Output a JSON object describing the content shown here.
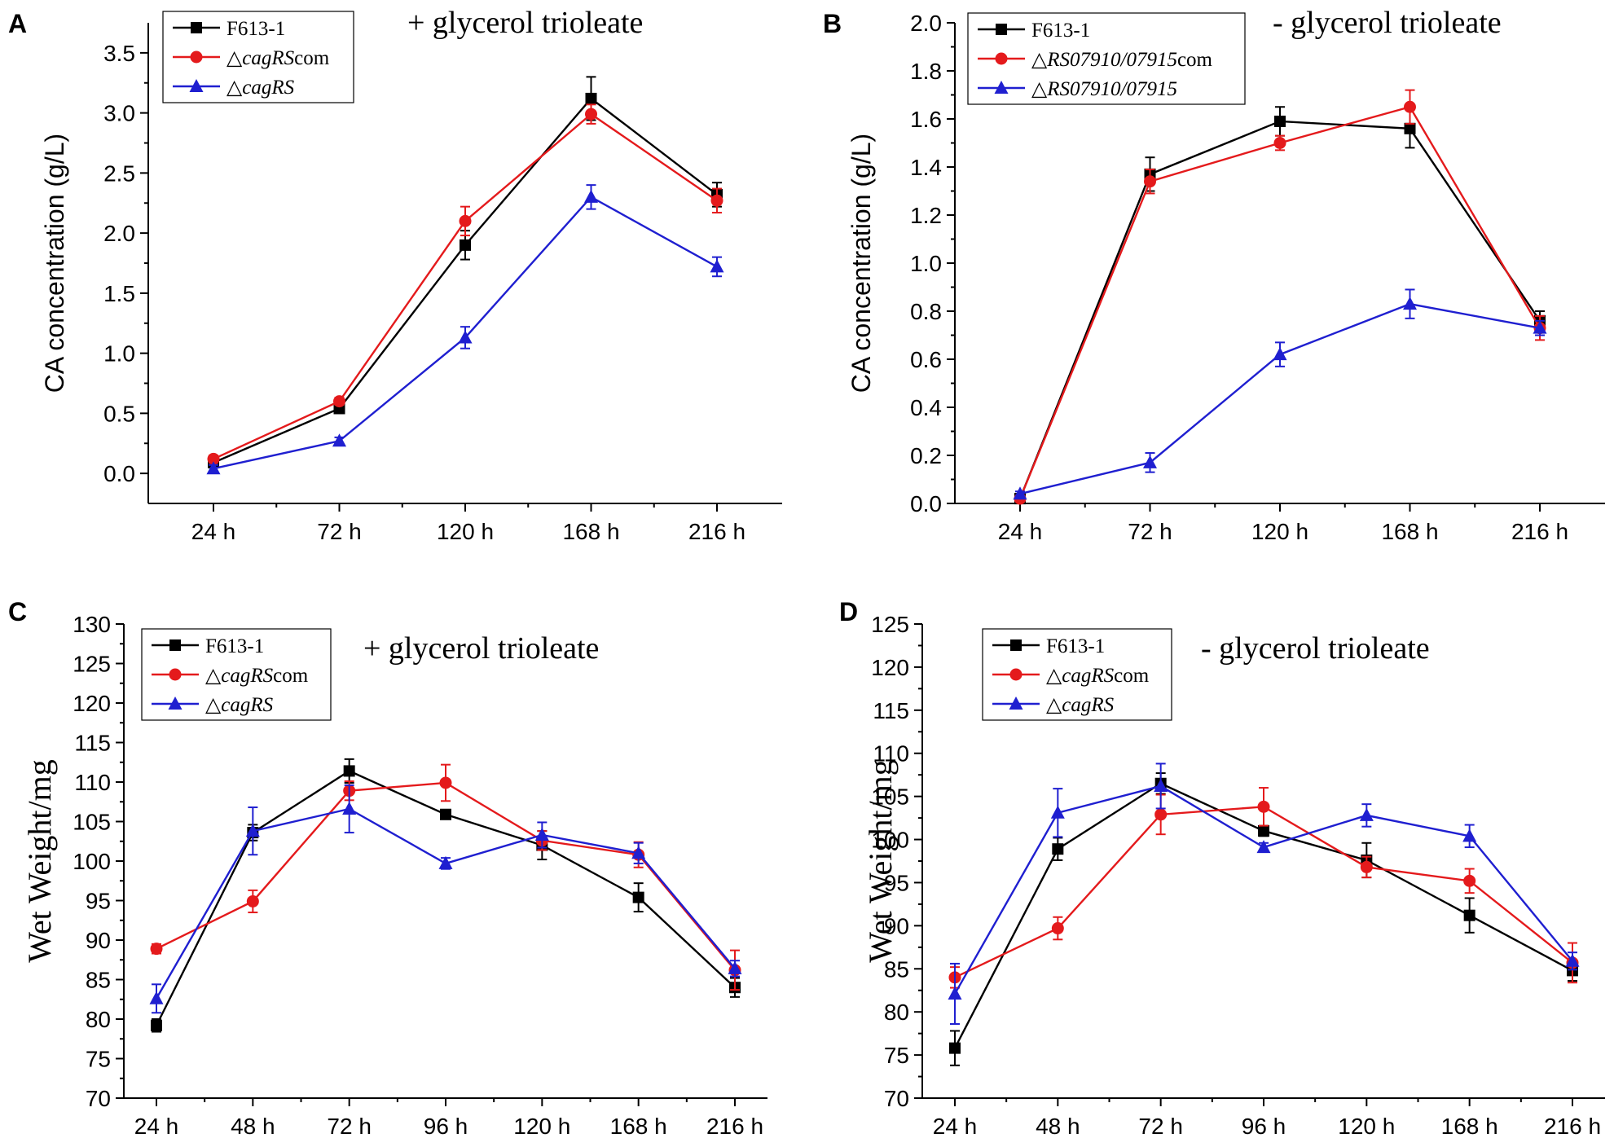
{
  "chart_data": [
    {
      "panel": "A",
      "type": "line",
      "title": "+ glycerol trioleate",
      "xlabel": "",
      "ylabel": "CA concentration (g/L)",
      "ylim": [
        -0.25,
        3.75
      ],
      "yticks": [
        0.0,
        0.5,
        1.0,
        1.5,
        2.0,
        2.5,
        3.0,
        3.5
      ],
      "ytick_labels": [
        "0.0",
        "0.5",
        "1.0",
        "1.5",
        "2.0",
        "2.5",
        "3.0",
        "3.5"
      ],
      "categories": [
        "24 h",
        "72 h",
        "120 h",
        "168 h",
        "216 h"
      ],
      "legend_position": "top-left",
      "series": [
        {
          "name": "F613-1",
          "legend_plain": "F613-1",
          "legend_italic": "",
          "legend_suffix": "",
          "color": "#000000",
          "marker": "square",
          "values": [
            0.09,
            0.54,
            1.9,
            3.12,
            2.32
          ],
          "errors": [
            0.03,
            0.03,
            0.12,
            0.18,
            0.1
          ]
        },
        {
          "name": "△cagRScom",
          "legend_plain": "△",
          "legend_italic": "cagRS",
          "legend_suffix": "com",
          "color": "#e41a1c",
          "marker": "circle",
          "values": [
            0.12,
            0.6,
            2.1,
            2.99,
            2.27
          ],
          "errors": [
            0.03,
            0.03,
            0.12,
            0.08,
            0.1
          ]
        },
        {
          "name": "△cagRS",
          "legend_plain": "△",
          "legend_italic": "cagRS",
          "legend_suffix": "",
          "color": "#1f1fd0",
          "marker": "triangle",
          "values": [
            0.04,
            0.27,
            1.13,
            2.3,
            1.72
          ],
          "errors": [
            0.03,
            0.03,
            0.09,
            0.1,
            0.08
          ]
        }
      ]
    },
    {
      "panel": "B",
      "type": "line",
      "title": "- glycerol trioleate",
      "xlabel": "",
      "ylabel": "CA concentration (g/L)",
      "ylim": [
        0.0,
        2.0
      ],
      "yticks": [
        0.0,
        0.2,
        0.4,
        0.6,
        0.8,
        1.0,
        1.2,
        1.4,
        1.6,
        1.8,
        2.0
      ],
      "ytick_labels": [
        "0.0",
        "0.2",
        "0.4",
        "0.6",
        "0.8",
        "1.0",
        "1.2",
        "1.4",
        "1.6",
        "1.8",
        "2.0"
      ],
      "categories": [
        "24 h",
        "72 h",
        "120 h",
        "168 h",
        "216 h"
      ],
      "legend_position": "top-left",
      "series": [
        {
          "name": "F613-1",
          "legend_plain": "F613-1",
          "legend_italic": "",
          "legend_suffix": "",
          "color": "#000000",
          "marker": "square",
          "values": [
            0.02,
            1.37,
            1.59,
            1.56,
            0.76
          ],
          "errors": [
            0.01,
            0.07,
            0.06,
            0.08,
            0.04
          ]
        },
        {
          "name": "△RS07910/07915com",
          "legend_plain": "△",
          "legend_italic": "RS07910/07915",
          "legend_suffix": "com",
          "color": "#e41a1c",
          "marker": "circle",
          "values": [
            0.02,
            1.34,
            1.5,
            1.65,
            0.73
          ],
          "errors": [
            0.01,
            0.05,
            0.03,
            0.07,
            0.05
          ]
        },
        {
          "name": "△RS07910/07915",
          "legend_plain": "△",
          "legend_italic": "RS07910/07915",
          "legend_suffix": "",
          "color": "#1f1fd0",
          "marker": "triangle",
          "values": [
            0.04,
            0.17,
            0.62,
            0.83,
            0.73
          ],
          "errors": [
            0.01,
            0.04,
            0.05,
            0.06,
            0.03
          ]
        }
      ]
    },
    {
      "panel": "C",
      "type": "line",
      "title": "+ glycerol trioleate",
      "xlabel": "",
      "ylabel": "Wet Weight/mg",
      "ylim": [
        70,
        130
      ],
      "yticks": [
        70,
        75,
        80,
        85,
        90,
        95,
        100,
        105,
        110,
        115,
        120,
        125,
        130
      ],
      "ytick_labels": [
        "70",
        "75",
        "80",
        "85",
        "90",
        "95",
        "100",
        "105",
        "110",
        "115",
        "120",
        "125",
        "130"
      ],
      "categories": [
        "24 h",
        "48 h",
        "72 h",
        "96 h",
        "120 h",
        "168 h",
        "216 h"
      ],
      "legend_position": "top-left",
      "series": [
        {
          "name": "F613-1",
          "legend_plain": "F613-1",
          "legend_italic": "",
          "legend_suffix": "",
          "color": "#000000",
          "marker": "square",
          "values": [
            79.2,
            103.6,
            111.4,
            105.9,
            102.0,
            95.4,
            84.0
          ],
          "errors": [
            0.8,
            1.0,
            1.5,
            0.6,
            1.8,
            1.8,
            1.2
          ]
        },
        {
          "name": "△cagRScom",
          "legend_plain": "△",
          "legend_italic": "cagRS",
          "legend_suffix": "com",
          "color": "#e41a1c",
          "marker": "circle",
          "values": [
            88.9,
            94.9,
            108.9,
            109.9,
            102.6,
            100.8,
            86.2
          ],
          "errors": [
            0.6,
            1.4,
            1.2,
            2.3,
            1.2,
            1.6,
            2.5
          ]
        },
        {
          "name": "△cagRS",
          "legend_plain": "△",
          "legend_italic": "cagRS",
          "legend_suffix": "",
          "color": "#1f1fd0",
          "marker": "triangle",
          "values": [
            82.6,
            103.8,
            106.6,
            99.7,
            103.3,
            101.0,
            86.4
          ],
          "errors": [
            1.8,
            3.0,
            3.0,
            0.7,
            1.6,
            1.3,
            1.0
          ]
        }
      ]
    },
    {
      "panel": "D",
      "type": "line",
      "title": "- glycerol trioleate",
      "xlabel": "",
      "ylabel": "Wet Weight/mg",
      "ylim": [
        70,
        125
      ],
      "yticks": [
        70,
        75,
        80,
        85,
        90,
        95,
        100,
        105,
        110,
        115,
        120,
        125
      ],
      "ytick_labels": [
        "70",
        "75",
        "80",
        "85",
        "90",
        "95",
        "100",
        "105",
        "110",
        "115",
        "120",
        "125"
      ],
      "categories": [
        "24 h",
        "48 h",
        "72 h",
        "96 h",
        "120 h",
        "168 h",
        "216 h"
      ],
      "legend_position": "top-left",
      "series": [
        {
          "name": "F613-1",
          "legend_plain": "F613-1",
          "legend_italic": "",
          "legend_suffix": "",
          "color": "#000000",
          "marker": "square",
          "values": [
            75.8,
            98.9,
            106.5,
            101.0,
            97.6,
            91.2,
            84.8
          ],
          "errors": [
            2.0,
            1.3,
            1.2,
            0.6,
            2.0,
            2.0,
            1.2
          ]
        },
        {
          "name": "△cagRScom",
          "legend_plain": "△",
          "legend_italic": "cagRS",
          "legend_suffix": "com",
          "color": "#e41a1c",
          "marker": "circle",
          "values": [
            84.0,
            89.7,
            102.9,
            103.8,
            96.8,
            95.2,
            85.7
          ],
          "errors": [
            1.2,
            1.3,
            2.3,
            2.2,
            1.2,
            1.4,
            2.3
          ]
        },
        {
          "name": "△cagRS",
          "legend_plain": "△",
          "legend_italic": "cagRS",
          "legend_suffix": "",
          "color": "#1f1fd0",
          "marker": "triangle",
          "values": [
            82.1,
            103.1,
            106.2,
            99.1,
            102.8,
            100.4,
            85.9
          ],
          "errors": [
            3.5,
            2.8,
            2.6,
            0.5,
            1.3,
            1.3,
            1.0
          ]
        }
      ]
    }
  ]
}
